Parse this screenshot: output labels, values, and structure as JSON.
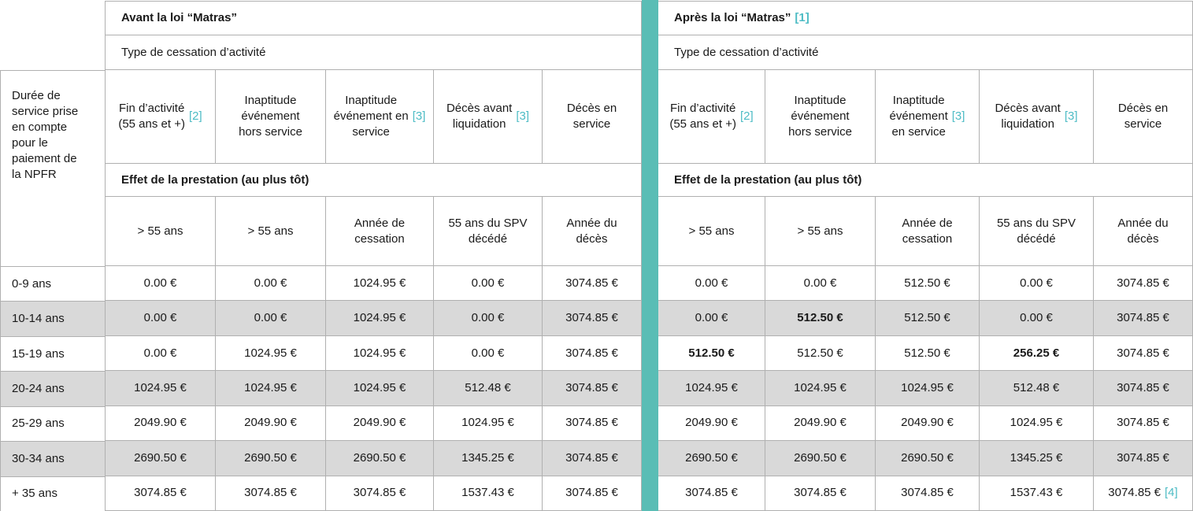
{
  "colors": {
    "teal_divider": "#5abdb5",
    "note_text": "#4ebcc5",
    "row_alt": "#d9d9d9",
    "border": "#b0b0b0"
  },
  "corner": {
    "label": "Durée de\nservice prise\nen compte\npour le\npaiement de\nla NPFR"
  },
  "row_labels": [
    "0-9 ans",
    "10-14 ans",
    "15-19 ans",
    "20-24 ans",
    "25-29 ans",
    "30-34 ans",
    "+ 35 ans"
  ],
  "left": {
    "title": "Avant la loi “Matras”",
    "note": "",
    "type_header": "Type de cessation d’activité",
    "columns": [
      {
        "label": "Fin d’activité\n(55 ans et +)",
        "note": "[2]"
      },
      {
        "label": "Inaptitude\névénement\nhors service",
        "note": ""
      },
      {
        "label": "Inaptitude\névénement en\nservice",
        "note": "[3]"
      },
      {
        "label": "Décès avant\nliquidation",
        "note": "[3]"
      },
      {
        "label": "Décès en\nservice",
        "note": ""
      }
    ],
    "effect_header": "Effet de la prestation (au plus tôt)",
    "effect_columns": [
      "> 55 ans",
      "> 55 ans",
      "Année de\ncessation",
      "55 ans du SPV\ndécédé",
      "Année du\ndécès"
    ],
    "rows": [
      [
        "0.00 €",
        "0.00 €",
        "1024.95 €",
        "0.00 €",
        "3074.85 €"
      ],
      [
        "0.00 €",
        "0.00 €",
        "1024.95 €",
        "0.00 €",
        "3074.85 €"
      ],
      [
        "0.00 €",
        "1024.95 €",
        "1024.95 €",
        "0.00 €",
        "3074.85 €"
      ],
      [
        "1024.95 €",
        "1024.95 €",
        "1024.95 €",
        "512.48 €",
        "3074.85 €"
      ],
      [
        "2049.90 €",
        "2049.90 €",
        "2049.90 €",
        "1024.95 €",
        "3074.85 €"
      ],
      [
        "2690.50 €",
        "2690.50 €",
        "2690.50 €",
        "1345.25 €",
        "3074.85 €"
      ],
      [
        "3074.85 €",
        "3074.85 €",
        "3074.85 €",
        "1537.43 €",
        "3074.85 €"
      ]
    ]
  },
  "right": {
    "title": "Après la loi “Matras”",
    "note": "[1]",
    "type_header": "Type de cessation d’activité",
    "columns": [
      {
        "label": "Fin d’activité\n(55 ans et +)",
        "note": "[2]"
      },
      {
        "label": "Inaptitude\névénement\nhors service",
        "note": ""
      },
      {
        "label": "Inaptitude\névénement\nen service",
        "note": "[3]"
      },
      {
        "label": "Décès avant\nliquidation",
        "note": "[3]"
      },
      {
        "label": "Décès en\nservice",
        "note": ""
      }
    ],
    "effect_header": "Effet de la prestation (au plus tôt)",
    "effect_columns": [
      "> 55 ans",
      "> 55 ans",
      "Année de\ncessation",
      "55 ans du SPV\ndécédé",
      "Année du\ndécès"
    ],
    "rows": [
      [
        "0.00 €",
        "0.00 €",
        "512.50 €",
        "0.00 €",
        "3074.85 €"
      ],
      [
        "0.00 €",
        {
          "v": "512.50 €",
          "bold": true
        },
        "512.50 €",
        "0.00 €",
        "3074.85 €"
      ],
      [
        {
          "v": "512.50 €",
          "bold": true
        },
        "512.50 €",
        "512.50 €",
        {
          "v": "256.25 €",
          "bold": true
        },
        "3074.85 €"
      ],
      [
        "1024.95 €",
        "1024.95 €",
        "1024.95 €",
        "512.48 €",
        "3074.85 €"
      ],
      [
        "2049.90 €",
        "2049.90 €",
        "2049.90 €",
        "1024.95 €",
        "3074.85 €"
      ],
      [
        "2690.50 €",
        "2690.50 €",
        "2690.50 €",
        "1345.25 €",
        "3074.85 €"
      ],
      [
        "3074.85 €",
        "3074.85 €",
        "3074.85 €",
        "1537.43 €",
        {
          "v": "3074.85 €",
          "note": "[4]"
        }
      ]
    ]
  }
}
